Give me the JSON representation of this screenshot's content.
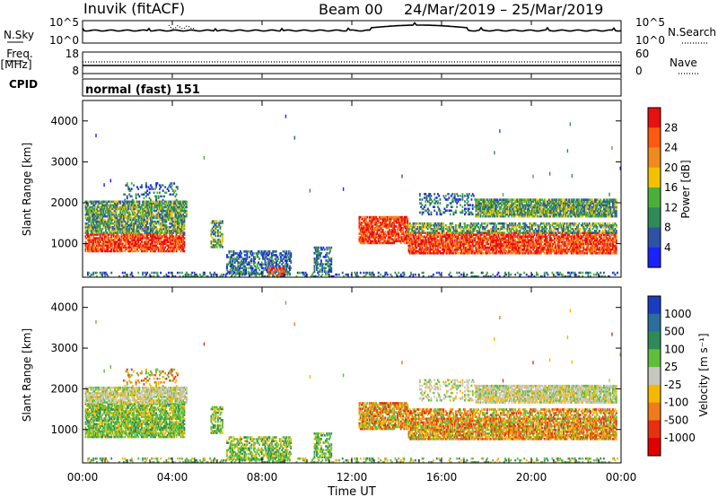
{
  "header": {
    "station": "Inuvik (fitACF)",
    "beam": "Beam 00",
    "date_range": "24/Mar/2019 – 25/Mar/2019"
  },
  "summary_panels": {
    "nsky": {
      "left_label": "N.Sky",
      "right_label": "N.Search",
      "left_ticks": [
        "10^5",
        "10^0"
      ],
      "right_ticks": [
        "10^5",
        "10^0"
      ]
    },
    "freq": {
      "left_label_line1": "Freq.",
      "left_label_line2": "[MHz]",
      "right_label": "Nave",
      "left_ticks": [
        "18",
        "8"
      ],
      "right_ticks": [
        "60",
        "0"
      ]
    },
    "cpid": {
      "label": "CPID",
      "text": "normal (fast) 151"
    }
  },
  "chart_data": [
    {
      "type": "heatmap",
      "name": "power",
      "ylabel": "Slant Range [km]",
      "y_ticks": [
        "1000",
        "2000",
        "3000",
        "4000"
      ],
      "ylim": [
        180,
        4500
      ],
      "colorbar": {
        "label": "Power [dB]",
        "tick_labels": [
          "4",
          "8",
          "12",
          "16",
          "20",
          "24",
          "28"
        ],
        "colors": [
          "#1a22ff",
          "#2e52a8",
          "#2e8b57",
          "#4caf3a",
          "#f2c200",
          "#f08a1c",
          "#ff5a10",
          "#e81010"
        ]
      }
    },
    {
      "type": "heatmap",
      "name": "velocity",
      "ylabel": "Slant Range [km]",
      "y_ticks": [
        "1000",
        "2000",
        "3000",
        "4000"
      ],
      "ylim": [
        180,
        4500
      ],
      "colorbar": {
        "label": "Velocity [m s⁻¹]",
        "tick_labels": [
          "1000",
          "500",
          "100",
          "25",
          "-25",
          "-100",
          "-500",
          "-1000"
        ],
        "colors": [
          "#1a3cc0",
          "#2b6e9e",
          "#2e8b57",
          "#5fbf3a",
          "#c8c6c0",
          "#f5b800",
          "#f07a1c",
          "#e83010",
          "#e00000"
        ]
      }
    }
  ],
  "x_axis": {
    "label": "Time UT",
    "tick_labels": [
      "00:00",
      "04:00",
      "08:00",
      "12:00",
      "16:00",
      "20:00",
      "00:00"
    ]
  }
}
